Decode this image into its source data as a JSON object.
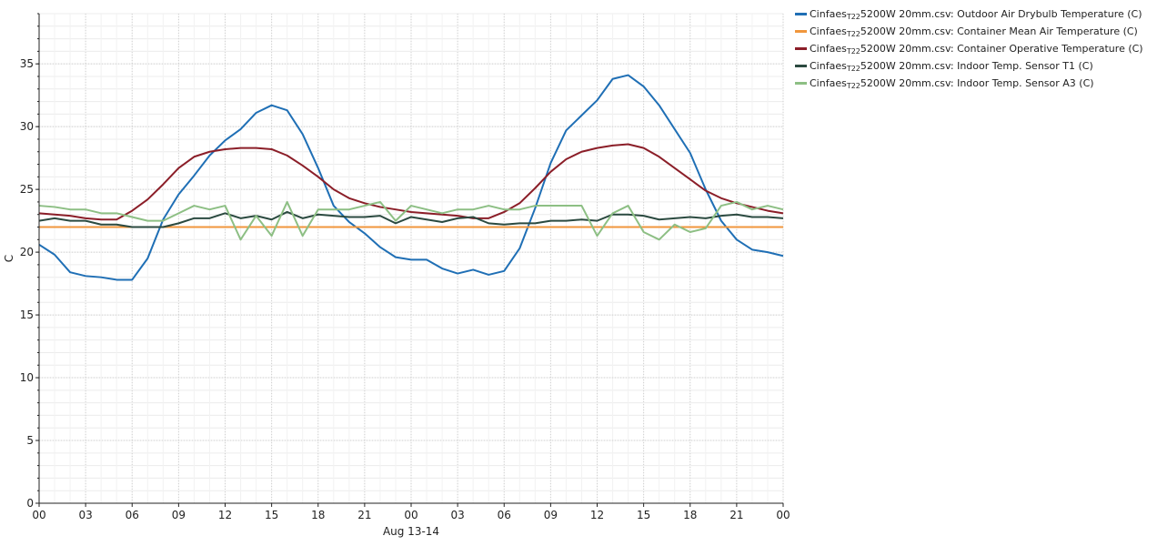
{
  "chart_data": {
    "type": "line",
    "title": "",
    "xlabel": "Aug 13-14",
    "ylabel": "C",
    "ylim": [
      0,
      39
    ],
    "yticks": [
      0,
      5,
      10,
      15,
      20,
      25,
      30,
      35
    ],
    "xlim": [
      0,
      48
    ],
    "xtick_positions": [
      0,
      3,
      6,
      9,
      12,
      15,
      18,
      21,
      24,
      27,
      30,
      33,
      36,
      39,
      42,
      45,
      48
    ],
    "xtick_labels": [
      "00",
      "03",
      "06",
      "09",
      "12",
      "15",
      "18",
      "21",
      "00",
      "03",
      "06",
      "09",
      "12",
      "15",
      "18",
      "21",
      "00"
    ],
    "grid": true,
    "legend_position": "right",
    "x": [
      0,
      1,
      2,
      3,
      4,
      5,
      6,
      7,
      8,
      9,
      10,
      11,
      12,
      13,
      14,
      15,
      16,
      17,
      18,
      19,
      20,
      21,
      22,
      23,
      24,
      25,
      26,
      27,
      28,
      29,
      30,
      31,
      32,
      33,
      34,
      35,
      36,
      37,
      38,
      39,
      40,
      41,
      42,
      43,
      44,
      45,
      46,
      47,
      48
    ],
    "series": [
      {
        "name": "Cinfaes_T22 5200W 20mm.csv: Outdoor Air Drybulb Temperature  (C)",
        "legend_prefix": "Cinfaes",
        "legend_sub": "T22",
        "legend_suffix": "5200W 20mm.csv: Outdoor Air Drybulb Temperature  (C)",
        "color": "#1f6fb5",
        "values": [
          20.6,
          19.8,
          18.4,
          18.1,
          18.0,
          17.8,
          17.8,
          19.5,
          22.6,
          24.6,
          26.1,
          27.7,
          28.9,
          29.8,
          31.1,
          31.7,
          31.3,
          29.4,
          26.7,
          23.7,
          22.4,
          21.5,
          20.4,
          19.6,
          19.4,
          19.4,
          18.7,
          18.3,
          18.6,
          18.2,
          18.5,
          20.3,
          23.5,
          27.1,
          29.7,
          30.9,
          32.1,
          33.8,
          34.1,
          33.2,
          31.7,
          29.8,
          27.9,
          25.0,
          22.5,
          21.0,
          20.2,
          20.0,
          19.7
        ]
      },
      {
        "name": "Cinfaes_T22 5200W 20mm.csv: Container Mean Air Temperature  (C)",
        "legend_prefix": "Cinfaes",
        "legend_sub": "T22",
        "legend_suffix": "5200W 20mm.csv: Container Mean Air Temperature  (C)",
        "color": "#f0963c",
        "values": [
          22.0,
          22.0,
          22.0,
          22.0,
          22.0,
          22.0,
          22.0,
          22.0,
          22.0,
          22.0,
          22.0,
          22.0,
          22.0,
          22.0,
          22.0,
          22.0,
          22.0,
          22.0,
          22.0,
          22.0,
          22.0,
          22.0,
          22.0,
          22.0,
          22.0,
          22.0,
          22.0,
          22.0,
          22.0,
          22.0,
          22.0,
          22.0,
          22.0,
          22.0,
          22.0,
          22.0,
          22.0,
          22.0,
          22.0,
          22.0,
          22.0,
          22.0,
          22.0,
          22.0,
          22.0,
          22.0,
          22.0,
          22.0,
          22.0
        ]
      },
      {
        "name": "Cinfaes_T22 5200W 20mm.csv: Container Operative Temperature  (C)",
        "legend_prefix": "Cinfaes",
        "legend_sub": "T22",
        "legend_suffix": "5200W 20mm.csv: Container Operative Temperature  (C)",
        "color": "#8b1e28",
        "values": [
          23.1,
          23.0,
          22.9,
          22.7,
          22.6,
          22.6,
          23.3,
          24.2,
          25.4,
          26.7,
          27.6,
          28.0,
          28.2,
          28.3,
          28.3,
          28.2,
          27.7,
          26.9,
          26.0,
          25.0,
          24.3,
          23.9,
          23.6,
          23.4,
          23.2,
          23.1,
          23.0,
          22.9,
          22.7,
          22.7,
          23.2,
          23.9,
          25.1,
          26.4,
          27.4,
          28.0,
          28.3,
          28.5,
          28.6,
          28.3,
          27.6,
          26.7,
          25.8,
          24.9,
          24.3,
          23.9,
          23.6,
          23.3,
          23.1
        ]
      },
      {
        "name": "Cinfaes_T22 5200W 20mm.csv: Indoor Temp. Sensor T1   (C)",
        "legend_prefix": "Cinfaes",
        "legend_sub": "T22",
        "legend_suffix": "5200W 20mm.csv: Indoor Temp. Sensor T1   (C)",
        "color": "#2b4a40",
        "values": [
          22.5,
          22.7,
          22.5,
          22.5,
          22.2,
          22.2,
          22.0,
          22.0,
          22.0,
          22.3,
          22.7,
          22.7,
          23.1,
          22.7,
          22.9,
          22.6,
          23.2,
          22.7,
          23.0,
          22.9,
          22.8,
          22.8,
          22.9,
          22.3,
          22.8,
          22.6,
          22.4,
          22.7,
          22.8,
          22.3,
          22.2,
          22.3,
          22.3,
          22.5,
          22.5,
          22.6,
          22.5,
          23.0,
          23.0,
          22.9,
          22.6,
          22.7,
          22.8,
          22.7,
          22.9,
          23.0,
          22.8,
          22.8,
          22.7
        ]
      },
      {
        "name": "Cinfaes_T22 5200W 20mm.csv: Indoor Temp. Sensor A3   (C)",
        "legend_prefix": "Cinfaes",
        "legend_sub": "T22",
        "legend_suffix": "5200W 20mm.csv: Indoor Temp. Sensor A3   (C)",
        "color": "#8dbf84",
        "values": [
          23.7,
          23.6,
          23.4,
          23.4,
          23.1,
          23.1,
          22.8,
          22.5,
          22.5,
          23.1,
          23.7,
          23.4,
          23.7,
          21.0,
          22.9,
          21.3,
          24.0,
          21.3,
          23.4,
          23.4,
          23.4,
          23.7,
          24.0,
          22.5,
          23.7,
          23.4,
          23.1,
          23.4,
          23.4,
          23.7,
          23.4,
          23.4,
          23.7,
          23.7,
          23.7,
          23.7,
          21.3,
          23.1,
          23.7,
          21.6,
          21.0,
          22.2,
          21.6,
          21.9,
          23.7,
          24.0,
          23.4,
          23.7,
          23.4
        ]
      }
    ]
  }
}
